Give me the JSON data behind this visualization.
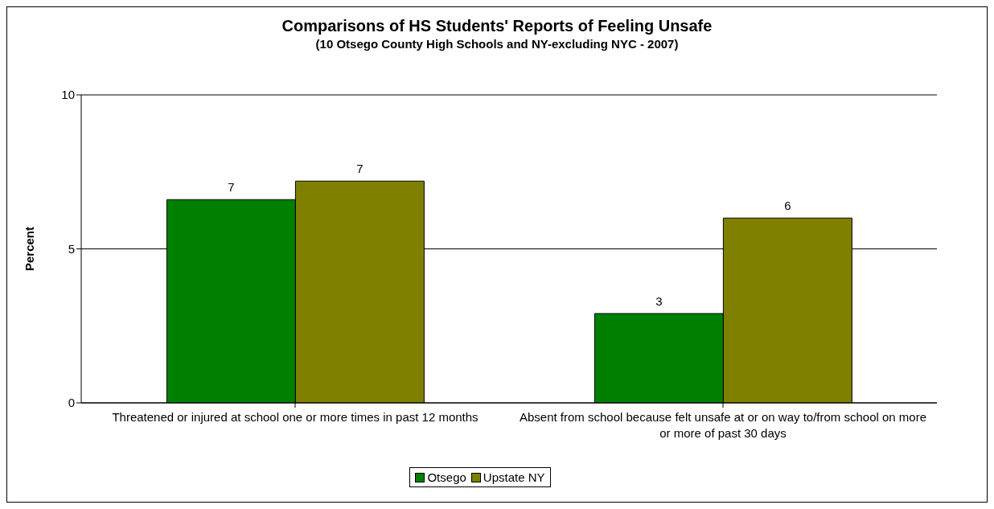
{
  "chart_data": {
    "type": "bar",
    "title": "Comparisons of HS Students' Reports of Feeling Unsafe",
    "subtitle": "(10 Otsego County High Schools and NY-excluding NYC - 2007)",
    "ylabel": "Percent",
    "categories": [
      "Threatened or injured at school one or more times in past 12 months",
      "Absent from school because felt unsafe at or on way to/from school on more or more of past 30 days"
    ],
    "series": [
      {
        "name": "Otsego",
        "color": "#008000",
        "values": [
          6.6,
          2.9
        ],
        "value_labels": [
          "7",
          "3"
        ]
      },
      {
        "name": "Upstate NY",
        "color": "#808000",
        "values": [
          7.2,
          6.0
        ],
        "value_labels": [
          "7",
          "6"
        ]
      }
    ],
    "ylim": [
      0,
      10
    ],
    "yticks": [
      0,
      5,
      10
    ],
    "grid": "y",
    "legend": "bottom"
  }
}
